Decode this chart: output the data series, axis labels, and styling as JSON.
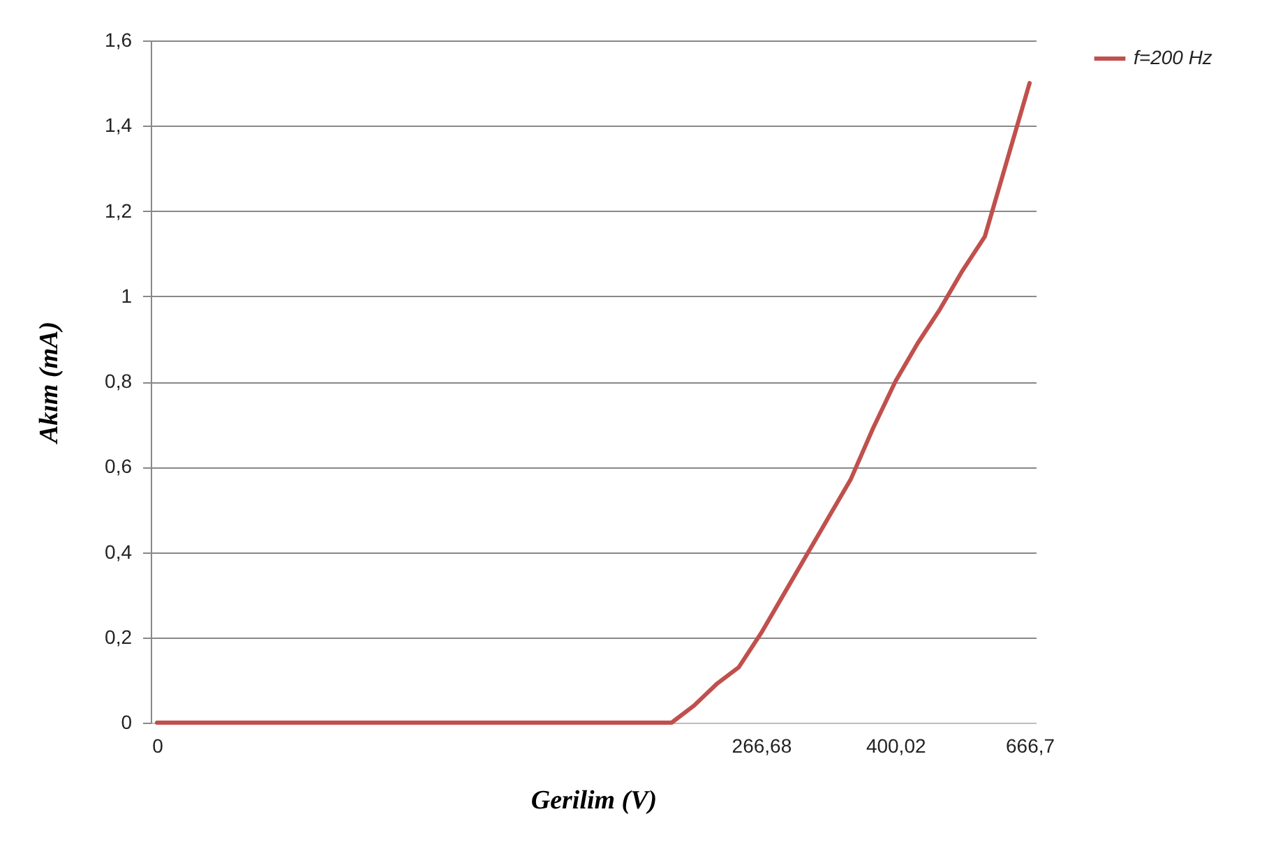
{
  "chart_data": {
    "type": "line",
    "xlabel": "Gerilim (V)",
    "ylabel": "Akım (mA)",
    "categories": [
      "0",
      null,
      null,
      null,
      null,
      null,
      null,
      null,
      null,
      null,
      null,
      null,
      null,
      null,
      null,
      null,
      null,
      null,
      null,
      null,
      null,
      null,
      null,
      null,
      null,
      null,
      null,
      "266,68",
      null,
      null,
      null,
      null,
      null,
      "400,02",
      null,
      null,
      null,
      null,
      null,
      "666,7"
    ],
    "series": [
      {
        "name": "f=200 Hz",
        "color": "#c0504d",
        "values": [
          0,
          0,
          0,
          0,
          0,
          0,
          0,
          0,
          0,
          0,
          0,
          0,
          0,
          0,
          0,
          0,
          0,
          0,
          0,
          0,
          0,
          0,
          0,
          0,
          0.04,
          0.09,
          0.13,
          0.21,
          0.3,
          0.39,
          0.48,
          0.57,
          0.69,
          0.8,
          0.89,
          0.97,
          1.06,
          1.14,
          1.32,
          1.5
        ]
      }
    ],
    "ylim": [
      0,
      1.6
    ],
    "yticks": [
      0,
      {
        "value": 0.2,
        "label": "0,2"
      },
      {
        "value": 0.4,
        "label": "0,4"
      },
      {
        "value": 0.6,
        "label": "0,6"
      },
      {
        "value": 0.8,
        "label": "0,8"
      },
      1,
      {
        "value": 1.2,
        "label": "1,2"
      },
      {
        "value": 1.4,
        "label": "1,4"
      },
      {
        "value": 1.6,
        "label": "1,6"
      }
    ],
    "grid": "y",
    "legend": "right",
    "marker": "none",
    "line_style": "solid"
  }
}
